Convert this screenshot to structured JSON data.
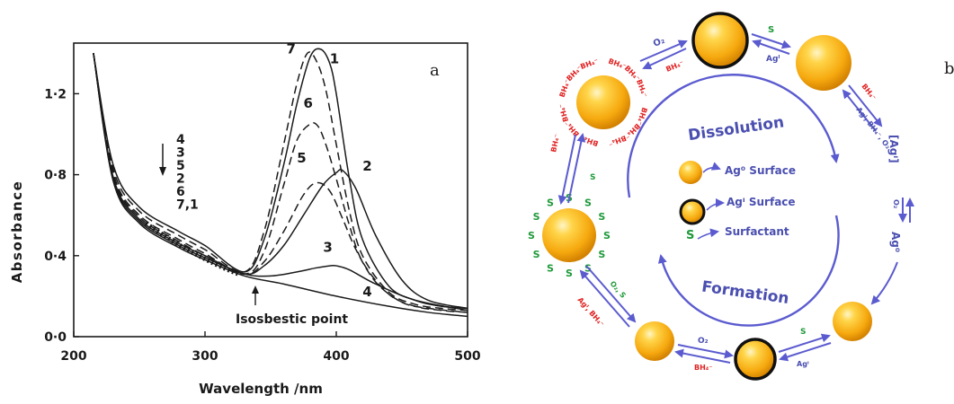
{
  "panel_a": {
    "letter": "a",
    "y_axis_label": "Absorbance",
    "x_axis_label": "Wavelength /nm",
    "isosbestic_label": "Isosbestic point",
    "order_labels": [
      "4",
      "3",
      "5",
      "2",
      "6",
      "7,1"
    ],
    "colors": {
      "ink": "#1a1a1a",
      "paper": "#ffffff"
    }
  },
  "chart_data": {
    "type": "line",
    "title": "",
    "xlabel": "Wavelength /nm",
    "ylabel": "Absorbance",
    "xlim": [
      200,
      500
    ],
    "ylim": [
      0.0,
      1.45
    ],
    "x_ticks": [
      "200",
      "300",
      "400",
      "500"
    ],
    "y_ticks": [
      "0·0",
      "0·4",
      "0·8",
      "1·2"
    ],
    "grid": false,
    "series": [
      {
        "name": "1",
        "style": "solid",
        "x": [
          215,
          230,
          250,
          280,
          300,
          330,
          345,
          360,
          370,
          380,
          388,
          395,
          400,
          410,
          420,
          440,
          460,
          480,
          500
        ],
        "y": [
          1.4,
          0.85,
          0.64,
          0.52,
          0.45,
          0.32,
          0.48,
          0.85,
          1.15,
          1.38,
          1.42,
          1.35,
          1.2,
          0.78,
          0.48,
          0.25,
          0.18,
          0.15,
          0.14
        ]
      },
      {
        "name": "7",
        "style": "dashed",
        "x": [
          215,
          230,
          250,
          280,
          300,
          330,
          345,
          360,
          370,
          378,
          385,
          392,
          400,
          410,
          420,
          440,
          460,
          480,
          500
        ],
        "y": [
          1.4,
          0.83,
          0.62,
          0.5,
          0.43,
          0.32,
          0.52,
          0.95,
          1.25,
          1.4,
          1.36,
          1.22,
          0.95,
          0.62,
          0.4,
          0.22,
          0.16,
          0.14,
          0.13
        ]
      },
      {
        "name": "6",
        "style": "dashed",
        "x": [
          215,
          230,
          250,
          280,
          300,
          330,
          345,
          360,
          370,
          380,
          386,
          392,
          400,
          410,
          420,
          440,
          460,
          480,
          500
        ],
        "y": [
          1.4,
          0.81,
          0.6,
          0.48,
          0.41,
          0.31,
          0.42,
          0.75,
          0.97,
          1.05,
          1.04,
          0.95,
          0.78,
          0.55,
          0.37,
          0.21,
          0.15,
          0.13,
          0.12
        ]
      },
      {
        "name": "5",
        "style": "dashed",
        "x": [
          215,
          230,
          250,
          280,
          300,
          330,
          345,
          360,
          375,
          385,
          395,
          405,
          415,
          430,
          450,
          470,
          500
        ],
        "y": [
          1.4,
          0.8,
          0.59,
          0.47,
          0.4,
          0.31,
          0.37,
          0.52,
          0.7,
          0.76,
          0.72,
          0.58,
          0.43,
          0.27,
          0.17,
          0.14,
          0.12
        ]
      },
      {
        "name": "2",
        "style": "solid",
        "x": [
          215,
          230,
          250,
          280,
          300,
          330,
          345,
          360,
          375,
          390,
          400,
          405,
          415,
          430,
          450,
          470,
          500
        ],
        "y": [
          1.4,
          0.79,
          0.58,
          0.46,
          0.4,
          0.31,
          0.35,
          0.45,
          0.6,
          0.75,
          0.81,
          0.82,
          0.73,
          0.5,
          0.28,
          0.18,
          0.14
        ]
      },
      {
        "name": "3",
        "style": "solid",
        "x": [
          215,
          230,
          250,
          280,
          300,
          330,
          350,
          370,
          385,
          395,
          400,
          410,
          430,
          460,
          500
        ],
        "y": [
          1.4,
          0.78,
          0.57,
          0.45,
          0.39,
          0.31,
          0.3,
          0.32,
          0.34,
          0.35,
          0.35,
          0.33,
          0.26,
          0.18,
          0.13
        ]
      },
      {
        "name": "4",
        "style": "solid",
        "x": [
          215,
          230,
          250,
          280,
          300,
          330,
          360,
          400,
          440,
          470,
          500
        ],
        "y": [
          1.4,
          0.77,
          0.56,
          0.44,
          0.38,
          0.3,
          0.26,
          0.2,
          0.15,
          0.12,
          0.1
        ]
      }
    ],
    "annotations": [
      {
        "text": "Isosbestic point",
        "x": 333,
        "y": 0.3
      }
    ]
  },
  "panel_b": {
    "letter": "b",
    "inner_labels": {
      "dissolution": "Dissolution",
      "formation": "Formation"
    },
    "legend": [
      {
        "symbol": "sphere",
        "label": "Ag⁰ Surface"
      },
      {
        "symbol": "ringed-sphere",
        "label": "Agᴵ Surface"
      },
      {
        "symbol": "S",
        "label": "Surfactant"
      }
    ],
    "right_labels": {
      "agI": "[Agᴵ]",
      "ag0": "Ag⁰"
    },
    "arrow_labels": {
      "top_left_fwd": "O₂",
      "top_left_back": "BH₄⁻",
      "top_right_fwd": "S",
      "top_right_back": "Agᴵ",
      "right_upper_a": "BH₄⁻",
      "right_upper_b": "Agᴵ, BH₄⁻, O₂",
      "right_mid_a": "O₂",
      "left_mid_a": "BH₄⁻",
      "left_mid_b": "S",
      "bottom_left_a": "O₂, S",
      "bottom_left_b": "Agᴵ, BH₄⁻",
      "bottom_mid_fwd": "O₂",
      "bottom_mid_back": "BH₄⁻",
      "bottom_right_fwd": "S",
      "bottom_right_back": "Agᴵ"
    },
    "sphere_labels": {
      "bh4": "BH₄⁻",
      "surfactant": "S"
    },
    "colors": {
      "arrow": "#5b5bd0",
      "text_blue": "#4a4fb0",
      "red": "#e02020",
      "green": "#1f9a3a",
      "sphere_light": "#ffe680",
      "sphere_mid": "#f9b51c",
      "sphere_dark": "#d98a05"
    }
  }
}
